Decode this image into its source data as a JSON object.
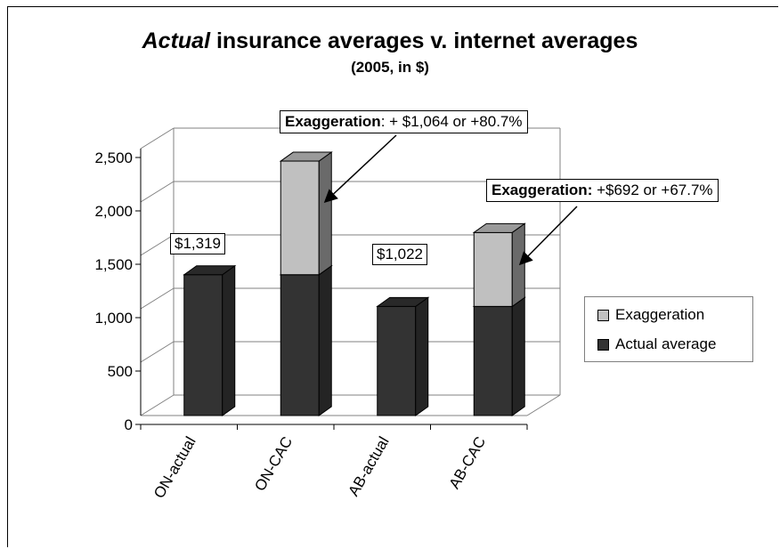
{
  "chart_data": {
    "type": "bar",
    "stacked": true,
    "three_d": true,
    "title_emphasis": "Actual",
    "title_rest": " insurance averages v. internet averages",
    "subtitle": "(2005, in $)",
    "categories": [
      "ON-actual",
      "ON-CAC",
      "AB-actual",
      "AB-CAC"
    ],
    "series": [
      {
        "name": "Actual average",
        "values": [
          1319,
          1319,
          1022,
          1022
        ],
        "color": "#333333"
      },
      {
        "name": "Exaggeration",
        "values": [
          0,
          1064,
          0,
          692
        ],
        "color": "#c0c0c0"
      }
    ],
    "ylim": [
      0,
      2500
    ],
    "yticks": [
      "0",
      "500",
      "1,000",
      "1,500",
      "2,000",
      "2,500"
    ],
    "grid": true,
    "legend_position": "right",
    "value_labels": [
      "$1,319",
      "$1,022"
    ],
    "annotations": [
      {
        "bold": "Exaggeration",
        "rest": ": + $1,064 or +80.7%"
      },
      {
        "bold": "Exaggeration:",
        "rest": " +$692 or +67.7%"
      }
    ]
  }
}
